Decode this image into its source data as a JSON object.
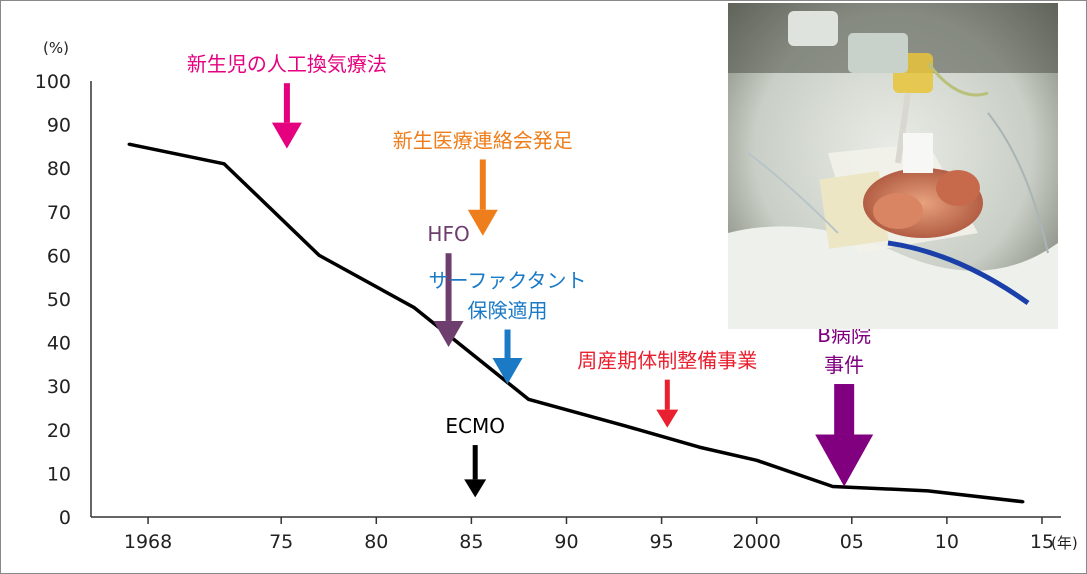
{
  "chart_data": {
    "type": "line",
    "title": "",
    "ylabel_unit": "(%)",
    "xlabel_unit": "(年)",
    "ylim": [
      0,
      100
    ],
    "y_ticks": [
      0,
      10,
      20,
      30,
      40,
      50,
      60,
      70,
      80,
      90,
      100
    ],
    "xlim": [
      1965,
      2016
    ],
    "x_ticks": [
      {
        "year": 1968,
        "label": "1968"
      },
      {
        "year": 1975,
        "label": "75"
      },
      {
        "year": 1980,
        "label": "80"
      },
      {
        "year": 1985,
        "label": "85"
      },
      {
        "year": 1990,
        "label": "90"
      },
      {
        "year": 1995,
        "label": "95"
      },
      {
        "year": 2000,
        "label": "2000"
      },
      {
        "year": 2005,
        "label": "05"
      },
      {
        "year": 2010,
        "label": "10"
      },
      {
        "year": 2015,
        "label": "15"
      }
    ],
    "series": [
      {
        "x": [
          1967,
          1972,
          1977,
          1982,
          1988,
          1993,
          1997,
          2000,
          2004,
          2009,
          2014
        ],
        "y": [
          85.5,
          81,
          60,
          48,
          27,
          21,
          16,
          13,
          7,
          6,
          3.5
        ]
      }
    ],
    "annotations": [
      {
        "text": "新生児の人工換気療法",
        "color": "#e5007f",
        "year": 1975.3,
        "tip": 84.5,
        "tail": 99.5,
        "size": "large"
      },
      {
        "text": "新生医療連絡会発足",
        "color": "#ee7d1b",
        "year": 1985.6,
        "tip": 64.5,
        "tail": 82,
        "size": "large"
      },
      {
        "text": "HFO",
        "color": "#6e3f6e",
        "year": 1983.8,
        "tip": 39,
        "tail": 60.5,
        "size": "large"
      },
      {
        "text": "サーファクタント",
        "text2": "保険適用",
        "color": "#1b7ac6",
        "year": 1986.9,
        "tip": 30.5,
        "tail": 43,
        "size": "large"
      },
      {
        "text": "周産期体制整備事業",
        "color": "#e8202f",
        "year": 1995.3,
        "tip": 20.5,
        "tail": 31.5,
        "size": "medium"
      },
      {
        "text": "ECMO",
        "color": "#000000",
        "year": 1985.2,
        "tip": 4.5,
        "tail": 16.5,
        "size": "medium"
      },
      {
        "text": "B病院",
        "text2": "事件",
        "color": "#800080",
        "year": 2004.6,
        "tip": 7,
        "tail": 30.5,
        "size": "xlarge"
      }
    ]
  }
}
